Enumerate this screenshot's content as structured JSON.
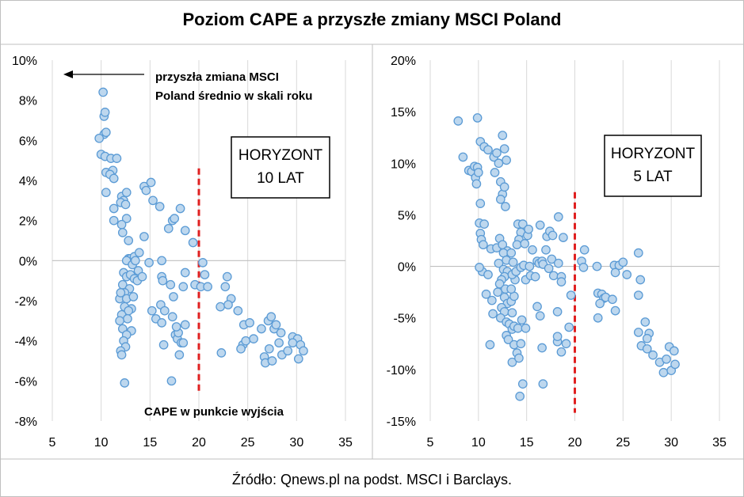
{
  "title": "Poziom CAPE a przyszłe zmiany MSCI Poland",
  "source": "Źródło: Qnews.pl na podst. MSCI i Barclays.",
  "colors": {
    "marker_fill": "#bdd7ee",
    "marker_stroke": "#5b9bd5",
    "threshold": "#e02020",
    "grid": "#d9d9d9"
  },
  "chart_data": [
    {
      "type": "scatter",
      "xlim": [
        5,
        35
      ],
      "xticks": [
        "5",
        "10",
        "15",
        "20",
        "25",
        "30",
        "35"
      ],
      "ylim": [
        -8,
        10
      ],
      "yticks": [
        "-8%",
        "-6%",
        "-4%",
        "-2%",
        "0%",
        "2%",
        "4%",
        "6%",
        "8%",
        "10%"
      ],
      "box_label": [
        "HORYZONT",
        "10 LAT"
      ],
      "annotation_arrow": [
        "przyszła zmiana MSCI",
        "Poland średnio w skali roku"
      ],
      "annotation_x": "CAPE w punkcie wyjścia",
      "threshold_x": 20,
      "points": [
        [
          10.2,
          8.4
        ],
        [
          10.3,
          7.2
        ],
        [
          10.4,
          7.4
        ],
        [
          10.3,
          6.3
        ],
        [
          10.5,
          6.4
        ],
        [
          9.8,
          6.1
        ],
        [
          10.0,
          5.3
        ],
        [
          10.4,
          5.2
        ],
        [
          11.0,
          5.1
        ],
        [
          11.6,
          5.1
        ],
        [
          10.5,
          4.4
        ],
        [
          11.2,
          4.5
        ],
        [
          10.9,
          4.3
        ],
        [
          11.3,
          4.1
        ],
        [
          10.5,
          3.4
        ],
        [
          12.1,
          3.2
        ],
        [
          12.6,
          3.4
        ],
        [
          12.3,
          3.0
        ],
        [
          12.0,
          2.9
        ],
        [
          11.3,
          2.6
        ],
        [
          12.5,
          2.8
        ],
        [
          11.3,
          2.0
        ],
        [
          12.6,
          2.1
        ],
        [
          12.1,
          1.8
        ],
        [
          12.2,
          1.4
        ],
        [
          12.8,
          1.0
        ],
        [
          12.8,
          0.1
        ],
        [
          13.0,
          0.1
        ],
        [
          12.6,
          0.0
        ],
        [
          13.4,
          0.2
        ],
        [
          13.2,
          -0.2
        ],
        [
          13.9,
          0.4
        ],
        [
          13.5,
          0.0
        ],
        [
          13.8,
          -0.5
        ],
        [
          12.3,
          -0.6
        ],
        [
          12.6,
          -0.8
        ],
        [
          13.0,
          -0.7
        ],
        [
          13.4,
          -0.9
        ],
        [
          13.7,
          -1.0
        ],
        [
          12.2,
          -1.2
        ],
        [
          12.9,
          -1.4
        ],
        [
          12.4,
          -1.6
        ],
        [
          11.9,
          -1.9
        ],
        [
          12.6,
          -1.9
        ],
        [
          13.3,
          -1.8
        ],
        [
          12.0,
          -1.6
        ],
        [
          12.4,
          -2.3
        ],
        [
          13.1,
          -2.4
        ],
        [
          12.8,
          -2.5
        ],
        [
          12.1,
          -2.7
        ],
        [
          12.7,
          -2.9
        ],
        [
          11.9,
          -3.0
        ],
        [
          12.2,
          -3.4
        ],
        [
          13.1,
          -3.5
        ],
        [
          12.6,
          -3.7
        ],
        [
          12.3,
          -4.0
        ],
        [
          12.5,
          -4.3
        ],
        [
          12.0,
          -4.5
        ],
        [
          12.1,
          -4.7
        ],
        [
          12.4,
          -6.1
        ],
        [
          14.2,
          -0.8
        ],
        [
          14.4,
          1.2
        ],
        [
          14.4,
          3.7
        ],
        [
          14.6,
          3.5
        ],
        [
          15.1,
          3.9
        ],
        [
          15.3,
          3.0
        ],
        [
          14.9,
          -0.1
        ],
        [
          15.2,
          -2.5
        ],
        [
          15.6,
          -2.9
        ],
        [
          16.2,
          0.0
        ],
        [
          16.2,
          -0.8
        ],
        [
          16.3,
          -1.0
        ],
        [
          16.1,
          -2.2
        ],
        [
          16.5,
          -2.5
        ],
        [
          16.2,
          -3.1
        ],
        [
          16.4,
          -4.2
        ],
        [
          16.0,
          2.7
        ],
        [
          16.9,
          1.6
        ],
        [
          17.3,
          2.0
        ],
        [
          17.5,
          2.1
        ],
        [
          17.1,
          -1.2
        ],
        [
          17.4,
          -1.8
        ],
        [
          17.3,
          -2.8
        ],
        [
          17.6,
          -3.7
        ],
        [
          17.8,
          -3.9
        ],
        [
          18.0,
          -4.7
        ],
        [
          18.2,
          -4.1
        ],
        [
          17.9,
          -3.6
        ],
        [
          18.4,
          -4.1
        ],
        [
          18.6,
          -3.2
        ],
        [
          17.7,
          -3.3
        ],
        [
          17.2,
          -6.0
        ],
        [
          18.1,
          2.6
        ],
        [
          18.6,
          1.5
        ],
        [
          19.4,
          0.9
        ],
        [
          19.6,
          -1.2
        ],
        [
          18.6,
          -0.6
        ],
        [
          18.4,
          -1.3
        ],
        [
          20.4,
          -0.1
        ],
        [
          20.2,
          -1.3
        ],
        [
          20.9,
          -1.3
        ],
        [
          20.6,
          -0.7
        ],
        [
          22.2,
          -2.3
        ],
        [
          22.9,
          -0.8
        ],
        [
          22.7,
          -1.3
        ],
        [
          23.3,
          -1.9
        ],
        [
          23.0,
          -2.2
        ],
        [
          22.3,
          -4.6
        ],
        [
          24.0,
          -2.5
        ],
        [
          24.6,
          -3.2
        ],
        [
          25.2,
          -3.1
        ],
        [
          24.5,
          -4.2
        ],
        [
          24.8,
          -4.0
        ],
        [
          24.3,
          -4.4
        ],
        [
          25.6,
          -3.9
        ],
        [
          26.4,
          -3.4
        ],
        [
          26.7,
          -4.8
        ],
        [
          26.8,
          -5.1
        ],
        [
          27.2,
          -4.4
        ],
        [
          27.1,
          -3.0
        ],
        [
          27.4,
          -2.8
        ],
        [
          27.7,
          -3.4
        ],
        [
          27.9,
          -3.2
        ],
        [
          28.4,
          -3.6
        ],
        [
          28.2,
          -4.1
        ],
        [
          27.5,
          -5.0
        ],
        [
          28.5,
          -4.7
        ],
        [
          29.1,
          -4.5
        ],
        [
          29.6,
          -3.8
        ],
        [
          30.1,
          -3.9
        ],
        [
          29.6,
          -4.1
        ],
        [
          30.4,
          -4.2
        ],
        [
          30.7,
          -4.5
        ],
        [
          30.2,
          -4.9
        ]
      ]
    },
    {
      "type": "scatter",
      "xlim": [
        5,
        35
      ],
      "xticks": [
        "5",
        "10",
        "15",
        "20",
        "25",
        "30",
        "35"
      ],
      "ylim": [
        -15,
        20
      ],
      "yticks": [
        "-15%",
        "-10%",
        "-5%",
        "0%",
        "5%",
        "10%",
        "15%",
        "20%"
      ],
      "box_label": [
        "HORYZONT",
        "5 LAT"
      ],
      "threshold_x": 20,
      "points": [
        [
          7.9,
          14.1
        ],
        [
          8.4,
          10.6
        ],
        [
          9.9,
          14.4
        ],
        [
          9.0,
          9.3
        ],
        [
          9.3,
          9.2
        ],
        [
          9.6,
          9.7
        ],
        [
          9.7,
          8.6
        ],
        [
          9.9,
          9.6
        ],
        [
          10.0,
          9.1
        ],
        [
          9.8,
          8.0
        ],
        [
          10.2,
          12.1
        ],
        [
          10.6,
          11.6
        ],
        [
          11.0,
          11.3
        ],
        [
          10.2,
          6.1
        ],
        [
          10.1,
          4.2
        ],
        [
          10.2,
          3.2
        ],
        [
          10.6,
          4.1
        ],
        [
          10.3,
          2.6
        ],
        [
          10.5,
          2.1
        ],
        [
          10.4,
          -0.5
        ],
        [
          10.1,
          -0.1
        ],
        [
          10.8,
          -2.7
        ],
        [
          11.0,
          -0.8
        ],
        [
          11.3,
          1.7
        ],
        [
          11.9,
          1.8
        ],
        [
          11.4,
          -3.3
        ],
        [
          11.5,
          -4.6
        ],
        [
          11.2,
          -7.6
        ],
        [
          11.6,
          10.6
        ],
        [
          11.7,
          9.1
        ],
        [
          11.9,
          11.0
        ],
        [
          12.1,
          10.0
        ],
        [
          12.5,
          12.7
        ],
        [
          12.7,
          11.4
        ],
        [
          12.9,
          10.3
        ],
        [
          12.3,
          8.2
        ],
        [
          12.5,
          7.0
        ],
        [
          12.7,
          7.7
        ],
        [
          12.3,
          6.5
        ],
        [
          12.8,
          5.8
        ],
        [
          12.2,
          2.7
        ],
        [
          12.5,
          2.1
        ],
        [
          13.0,
          1.5
        ],
        [
          12.6,
          1.3
        ],
        [
          12.9,
          0.6
        ],
        [
          12.1,
          0.3
        ],
        [
          12.6,
          -0.3
        ],
        [
          13.0,
          -0.5
        ],
        [
          12.7,
          -1.0
        ],
        [
          12.4,
          -1.3
        ],
        [
          12.2,
          -1.7
        ],
        [
          12.8,
          -2.2
        ],
        [
          12.0,
          -2.5
        ],
        [
          12.7,
          -3.0
        ],
        [
          13.0,
          -3.6
        ],
        [
          12.4,
          -4.0
        ],
        [
          12.7,
          -4.4
        ],
        [
          12.3,
          -5.0
        ],
        [
          12.9,
          -5.4
        ],
        [
          13.2,
          -5.6
        ],
        [
          12.9,
          -6.7
        ],
        [
          13.1,
          -7.1
        ],
        [
          13.5,
          -9.3
        ],
        [
          13.7,
          -7.6
        ],
        [
          14.0,
          -8.4
        ],
        [
          13.5,
          -6.1
        ],
        [
          13.7,
          -5.8
        ],
        [
          13.5,
          -4.5
        ],
        [
          13.4,
          -3.4
        ],
        [
          13.7,
          -2.9
        ],
        [
          13.4,
          -2.2
        ],
        [
          13.8,
          -1.3
        ],
        [
          13.5,
          -0.8
        ],
        [
          13.9,
          -0.5
        ],
        [
          13.6,
          0.4
        ],
        [
          13.4,
          1.3
        ],
        [
          14.1,
          4.1
        ],
        [
          14.6,
          4.1
        ],
        [
          14.4,
          3.3
        ],
        [
          14.2,
          2.6
        ],
        [
          14.0,
          2.1
        ],
        [
          14.8,
          2.2
        ],
        [
          14.4,
          -0.1
        ],
        [
          14.7,
          0.1
        ],
        [
          14.9,
          -1.3
        ],
        [
          14.1,
          -6.0
        ],
        [
          14.5,
          -5.2
        ],
        [
          14.9,
          -6.0
        ],
        [
          14.4,
          -7.5
        ],
        [
          14.2,
          -8.9
        ],
        [
          14.6,
          -11.4
        ],
        [
          14.3,
          -12.6
        ],
        [
          15.1,
          3.0
        ],
        [
          15.2,
          3.6
        ],
        [
          15.3,
          0.0
        ],
        [
          15.6,
          1.6
        ],
        [
          15.4,
          -0.9
        ],
        [
          15.9,
          -1.0
        ],
        [
          16.1,
          0.5
        ],
        [
          16.3,
          0.3
        ],
        [
          16.6,
          0.5
        ],
        [
          16.7,
          0.2
        ],
        [
          16.1,
          -3.9
        ],
        [
          16.4,
          -4.8
        ],
        [
          16.6,
          -7.9
        ],
        [
          16.7,
          -11.4
        ],
        [
          16.4,
          4.0
        ],
        [
          17.1,
          2.9
        ],
        [
          17.0,
          1.6
        ],
        [
          17.4,
          3.4
        ],
        [
          17.7,
          3.0
        ],
        [
          17.6,
          0.7
        ],
        [
          17.3,
          -0.2
        ],
        [
          17.8,
          -0.9
        ],
        [
          18.3,
          0.3
        ],
        [
          18.2,
          -4.4
        ],
        [
          18.6,
          -1.0
        ],
        [
          18.6,
          -1.5
        ],
        [
          18.8,
          2.8
        ],
        [
          18.3,
          4.8
        ],
        [
          18.2,
          -7.3
        ],
        [
          18.6,
          -8.3
        ],
        [
          18.2,
          -6.8
        ],
        [
          19.1,
          -7.5
        ],
        [
          19.4,
          -5.9
        ],
        [
          19.6,
          -2.8
        ],
        [
          21.0,
          1.6
        ],
        [
          20.7,
          0.5
        ],
        [
          20.9,
          -0.1
        ],
        [
          22.3,
          0.0
        ],
        [
          22.4,
          -2.6
        ],
        [
          22.8,
          -2.7
        ],
        [
          23.0,
          -3.1
        ],
        [
          23.2,
          -3.0
        ],
        [
          22.6,
          -3.6
        ],
        [
          22.4,
          -5.0
        ],
        [
          24.1,
          0.1
        ],
        [
          23.9,
          -3.2
        ],
        [
          24.2,
          -4.3
        ],
        [
          24.6,
          0.1
        ],
        [
          24.2,
          -0.6
        ],
        [
          25.0,
          0.4
        ],
        [
          25.4,
          -0.8
        ],
        [
          26.6,
          1.3
        ],
        [
          26.8,
          -1.3
        ],
        [
          26.6,
          -2.8
        ],
        [
          26.6,
          -6.4
        ],
        [
          26.9,
          -7.7
        ],
        [
          27.3,
          -5.4
        ],
        [
          27.7,
          -6.5
        ],
        [
          27.5,
          -7.0
        ],
        [
          27.5,
          -8.0
        ],
        [
          28.1,
          -8.6
        ],
        [
          28.8,
          -9.3
        ],
        [
          29.2,
          -10.3
        ],
        [
          29.5,
          -9.0
        ],
        [
          29.8,
          -7.8
        ],
        [
          30.0,
          -10.1
        ],
        [
          30.3,
          -8.2
        ],
        [
          30.4,
          -9.5
        ]
      ]
    }
  ]
}
